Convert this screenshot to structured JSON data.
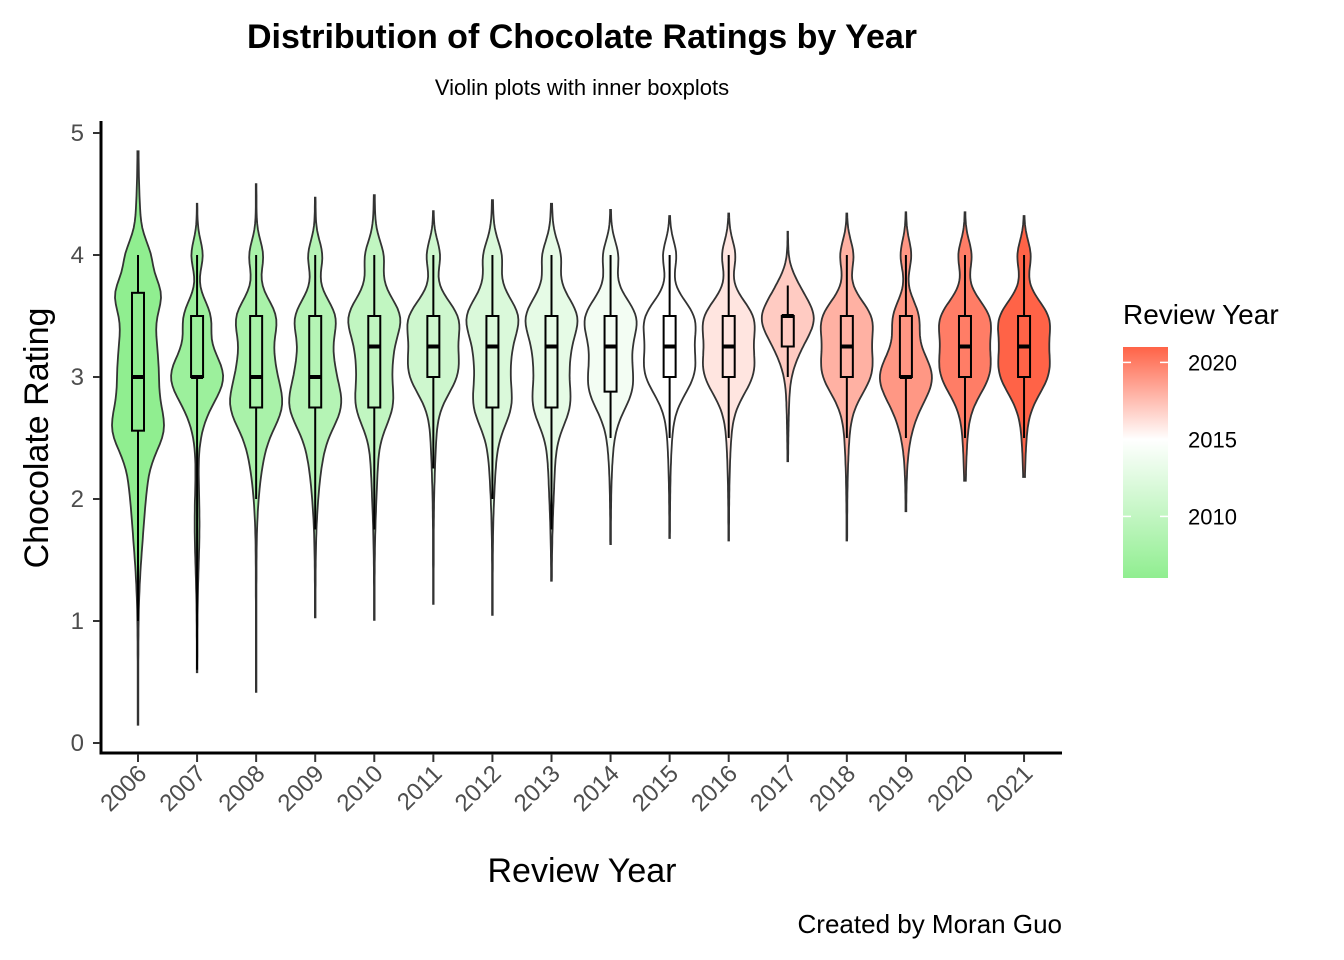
{
  "chart_data": {
    "type": "violin",
    "title": "Distribution of Chocolate Ratings by Year",
    "subtitle": "Violin plots with inner boxplots",
    "xlabel": "Review Year",
    "ylabel": "Chocolate Rating",
    "caption": "Created by Moran Guo",
    "ylim": [
      0,
      5
    ],
    "yticks": [
      0,
      1,
      2,
      3,
      4,
      5
    ],
    "grid": false,
    "legend": {
      "title": "Review Year",
      "position": "right",
      "type": "gradient",
      "range": [
        2006,
        2021
      ],
      "breaks": [
        2010,
        2015,
        2020
      ],
      "colors": {
        "low": "#90EE90",
        "mid": "#FFFFFF",
        "high": "#FF6347"
      },
      "midpoint": 2015
    },
    "categories": [
      "2006",
      "2007",
      "2008",
      "2009",
      "2010",
      "2011",
      "2012",
      "2013",
      "2014",
      "2015",
      "2016",
      "2017",
      "2018",
      "2019",
      "2020",
      "2021"
    ],
    "boxplots": [
      {
        "year": "2006",
        "min": 1.0,
        "q1": 2.56,
        "median": 3.0,
        "q3": 3.69,
        "max": 4.0
      },
      {
        "year": "2007",
        "min": 0.6,
        "q1": 3.0,
        "median": 3.0,
        "q3": 3.5,
        "max": 4.0
      },
      {
        "year": "2008",
        "min": 2.0,
        "q1": 2.75,
        "median": 3.0,
        "q3": 3.5,
        "max": 4.0
      },
      {
        "year": "2009",
        "min": 1.75,
        "q1": 2.75,
        "median": 3.0,
        "q3": 3.5,
        "max": 4.0
      },
      {
        "year": "2010",
        "min": 1.75,
        "q1": 2.75,
        "median": 3.25,
        "q3": 3.5,
        "max": 4.0
      },
      {
        "year": "2011",
        "min": 2.25,
        "q1": 3.0,
        "median": 3.25,
        "q3": 3.5,
        "max": 4.0
      },
      {
        "year": "2012",
        "min": 2.0,
        "q1": 2.75,
        "median": 3.25,
        "q3": 3.5,
        "max": 4.0
      },
      {
        "year": "2013",
        "min": 1.75,
        "q1": 2.75,
        "median": 3.25,
        "q3": 3.5,
        "max": 4.0
      },
      {
        "year": "2014",
        "min": 2.5,
        "q1": 2.88,
        "median": 3.25,
        "q3": 3.5,
        "max": 4.0
      },
      {
        "year": "2015",
        "min": 2.5,
        "q1": 3.0,
        "median": 3.25,
        "q3": 3.5,
        "max": 4.0
      },
      {
        "year": "2016",
        "min": 2.5,
        "q1": 3.0,
        "median": 3.25,
        "q3": 3.5,
        "max": 4.0
      },
      {
        "year": "2017",
        "min": 3.0,
        "q1": 3.25,
        "median": 3.5,
        "q3": 3.5,
        "max": 3.75
      },
      {
        "year": "2018",
        "min": 2.5,
        "q1": 3.0,
        "median": 3.25,
        "q3": 3.5,
        "max": 4.0
      },
      {
        "year": "2019",
        "min": 2.5,
        "q1": 3.0,
        "median": 3.0,
        "q3": 3.5,
        "max": 4.0
      },
      {
        "year": "2020",
        "min": 2.5,
        "q1": 3.0,
        "median": 3.25,
        "q3": 3.5,
        "max": 4.0
      },
      {
        "year": "2021",
        "min": 2.5,
        "q1": 3.0,
        "median": 3.25,
        "q3": 3.5,
        "max": 4.0
      }
    ],
    "violin_ranges": [
      {
        "year": "2006",
        "min": 0.15,
        "max": 4.85
      },
      {
        "year": "2007",
        "min": 0.58,
        "max": 4.42
      },
      {
        "year": "2008",
        "min": 0.42,
        "max": 4.58
      },
      {
        "year": "2009",
        "min": 1.03,
        "max": 4.47
      },
      {
        "year": "2010",
        "min": 1.01,
        "max": 4.49
      },
      {
        "year": "2011",
        "min": 1.14,
        "max": 4.36
      },
      {
        "year": "2012",
        "min": 1.05,
        "max": 4.45
      },
      {
        "year": "2013",
        "min": 1.33,
        "max": 4.42
      },
      {
        "year": "2014",
        "min": 1.63,
        "max": 4.37
      },
      {
        "year": "2015",
        "min": 1.68,
        "max": 4.32
      },
      {
        "year": "2016",
        "min": 1.66,
        "max": 4.34
      },
      {
        "year": "2017",
        "min": 2.31,
        "max": 4.19
      },
      {
        "year": "2018",
        "min": 1.66,
        "max": 4.34
      },
      {
        "year": "2019",
        "min": 1.9,
        "max": 4.35
      },
      {
        "year": "2020",
        "min": 2.15,
        "max": 4.35
      },
      {
        "year": "2021",
        "min": 2.18,
        "max": 4.32
      }
    ]
  }
}
